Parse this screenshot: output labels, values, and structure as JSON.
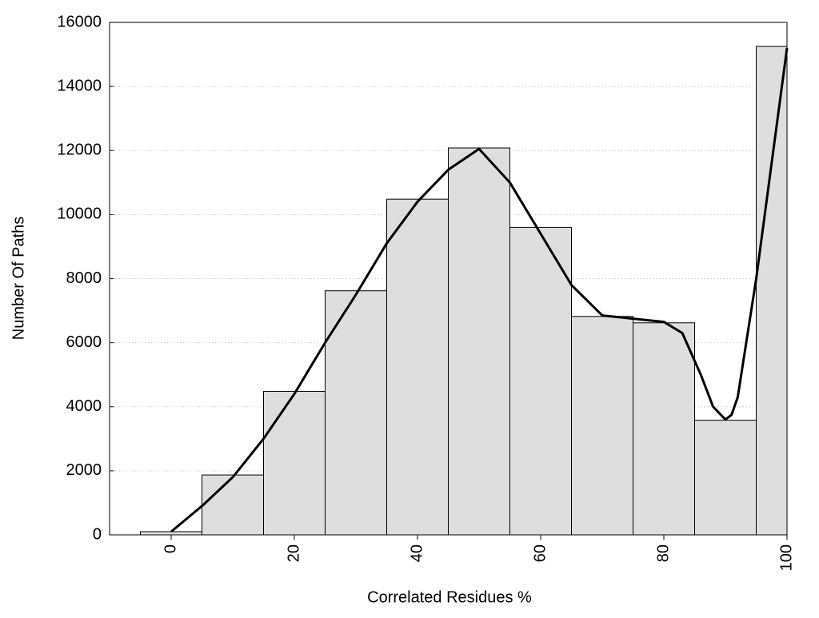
{
  "chart_data": {
    "type": "histogram",
    "xlabel": "Correlated Residues %",
    "ylabel": "Number Of Paths",
    "bins": [
      -5,
      5,
      15,
      25,
      35,
      45,
      55,
      65,
      75,
      85,
      95,
      100
    ],
    "values": [
      100,
      1870,
      4480,
      7620,
      10480,
      12080,
      9600,
      6820,
      6620,
      3580,
      15250
    ],
    "color": "#dedede",
    "line": {
      "color": "#000000",
      "x": [
        0,
        5,
        10,
        15,
        20,
        25,
        30,
        35,
        40,
        45,
        50,
        55,
        60,
        65,
        70,
        75,
        80,
        83,
        86,
        88,
        90,
        91,
        92,
        95,
        100
      ],
      "y": [
        100,
        900,
        1800,
        3000,
        4400,
        6000,
        7500,
        9100,
        10400,
        11400,
        12050,
        11000,
        9400,
        7800,
        6850,
        6750,
        6650,
        6300,
        5000,
        4000,
        3600,
        3750,
        4300,
        8000,
        15200
      ]
    },
    "xlim": [
      -10,
      100
    ],
    "ylim": [
      0,
      16000
    ],
    "xticks": [
      0,
      20,
      40,
      60,
      80,
      100
    ],
    "yticks": [
      0,
      2000,
      4000,
      6000,
      8000,
      10000,
      12000,
      14000,
      16000
    ],
    "grid": true
  }
}
